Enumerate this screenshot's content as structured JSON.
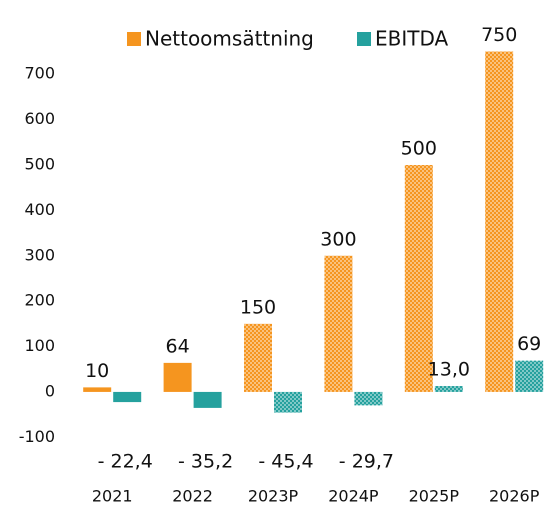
{
  "chart_data": {
    "type": "bar",
    "categories": [
      "2021",
      "2022",
      "2023P",
      "2024P",
      "2025P",
      "2026P"
    ],
    "series": [
      {
        "name": "Nettoomsättning",
        "color": "#f5951f",
        "values": [
          10,
          64,
          150,
          300,
          500,
          750
        ],
        "value_labels": [
          "10",
          "64",
          "150",
          "300",
          "500",
          "750"
        ],
        "patterned": [
          false,
          false,
          true,
          true,
          true,
          true
        ]
      },
      {
        "name": "EBITDA",
        "color": "#25a19e",
        "values": [
          -22.4,
          -35.2,
          -45.4,
          -29.7,
          13.0,
          69
        ],
        "value_labels": [
          "- 22,4",
          "- 35,2",
          "- 45,4",
          "- 29,7",
          "13,0",
          "69"
        ],
        "patterned": [
          false,
          false,
          true,
          true,
          true,
          true
        ]
      }
    ],
    "ylim": [
      -150,
      760
    ],
    "yticks": [
      -100,
      0,
      100,
      200,
      300,
      400,
      500,
      600,
      700
    ],
    "legend": "top",
    "grid": false
  }
}
